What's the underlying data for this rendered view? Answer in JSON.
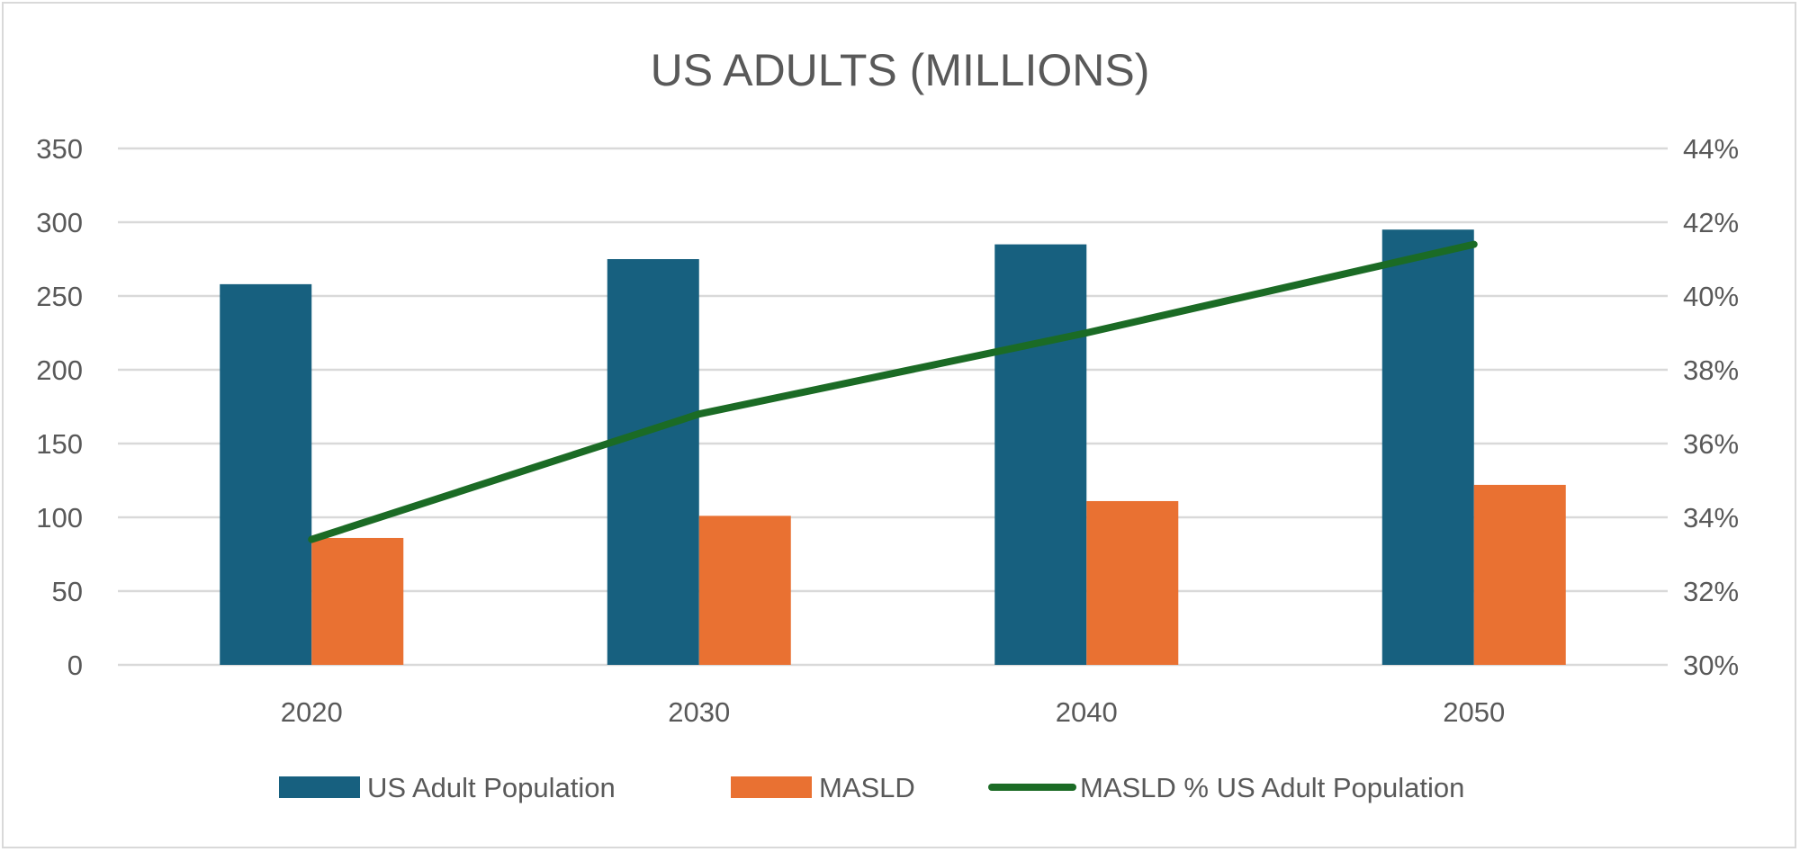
{
  "chart_data": {
    "type": "bar",
    "title": "US ADULTS (MILLIONS)",
    "categories": [
      "2020",
      "2030",
      "2040",
      "2050"
    ],
    "series": [
      {
        "name": "US Adult Population",
        "kind": "bar",
        "axis": "left",
        "color": "#17607f",
        "values": [
          258,
          275,
          285,
          295
        ]
      },
      {
        "name": "MASLD",
        "kind": "bar",
        "axis": "left",
        "color": "#e97132",
        "values": [
          86,
          101,
          111,
          122
        ]
      },
      {
        "name": "MASLD % US Adult Population",
        "kind": "line",
        "axis": "right",
        "color": "#1b6b25",
        "values": [
          33.4,
          36.8,
          39.0,
          41.4
        ]
      }
    ],
    "y_left": {
      "range": [
        0,
        350
      ],
      "ticks": [
        0,
        50,
        100,
        150,
        200,
        250,
        300,
        350
      ],
      "tick_labels": [
        "0",
        "50",
        "100",
        "150",
        "200",
        "250",
        "300",
        "350"
      ]
    },
    "y_right": {
      "range": [
        30,
        44
      ],
      "ticks": [
        30,
        32,
        34,
        36,
        38,
        40,
        42,
        44
      ],
      "tick_labels": [
        "30%",
        "32%",
        "34%",
        "36%",
        "38%",
        "40%",
        "42%",
        "44%"
      ]
    },
    "grid": true,
    "legend": "bottom"
  }
}
